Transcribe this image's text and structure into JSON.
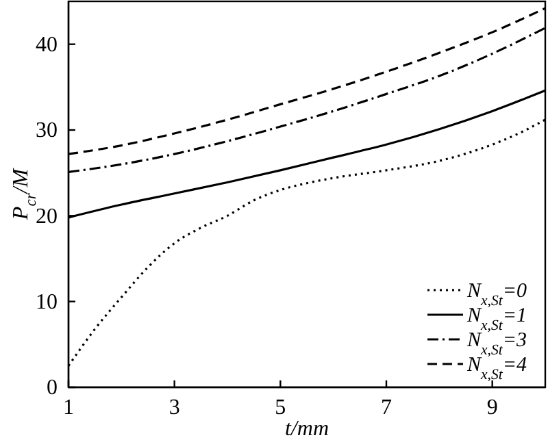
{
  "chart_data": {
    "type": "line",
    "xlabel": "t/mm",
    "ylabel": "P$_{cr}$/M",
    "xlim": [
      1,
      10
    ],
    "ylim": [
      0,
      45
    ],
    "xticks": [
      1,
      3,
      5,
      7,
      9
    ],
    "yticks": [
      0,
      10,
      20,
      30,
      40
    ],
    "grid": false,
    "legend": "bottom right",
    "marker": "none",
    "series": [
      {
        "name": "N$_{x,St}$=0",
        "color": "#000000",
        "line_style": "dotted",
        "x": [
          1,
          1.5,
          2,
          2.5,
          3,
          3.5,
          4,
          4.5,
          5,
          5.5,
          6,
          7,
          8,
          9,
          9.5,
          10
        ],
        "values": [
          2.5,
          6.8,
          10.5,
          14,
          16.8,
          18.6,
          20,
          21.8,
          23,
          23.8,
          24.4,
          25.3,
          26.4,
          28.3,
          29.6,
          31.2
        ]
      },
      {
        "name": "N$_{x,St}$=1",
        "color": "#000000",
        "line_style": "solid",
        "x": [
          1,
          2,
          3,
          4,
          5,
          6,
          7,
          8,
          9,
          10
        ],
        "values": [
          19.8,
          21.3,
          22.6,
          23.9,
          25.3,
          26.8,
          28.3,
          30.1,
          32.2,
          34.6
        ]
      },
      {
        "name": "N$_{x,St}$=3",
        "color": "#000000",
        "line_style": "dashdot",
        "x": [
          1,
          2,
          3,
          4,
          5,
          6,
          7,
          8,
          9,
          10
        ],
        "values": [
          25.1,
          26,
          27.2,
          28.7,
          30.4,
          32.2,
          34.2,
          36.3,
          38.9,
          41.9
        ]
      },
      {
        "name": "N$_{x,St}$=4",
        "color": "#000000",
        "line_style": "dashed",
        "x": [
          1,
          2,
          3,
          4,
          5,
          6,
          7,
          8,
          9,
          10
        ],
        "values": [
          27.2,
          28.2,
          29.6,
          31.2,
          33,
          34.8,
          36.8,
          39,
          41.4,
          44.2
        ]
      }
    ]
  }
}
